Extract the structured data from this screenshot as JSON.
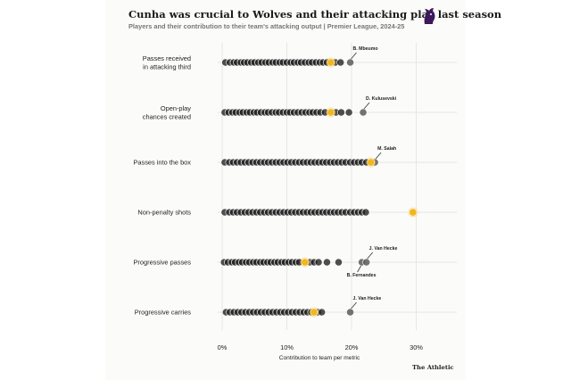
{
  "header": {
    "title": "Cunha was crucial to Wolves and their attacking play last season",
    "subtitle": "Players and their contribution to their team's attacking output | Premier League, 2024-25",
    "credit": "The Athletic",
    "logo_icon": "premier-league-lion-icon"
  },
  "colors": {
    "background": "#fbfbf9",
    "dot": "#1f1f1f",
    "highlight_dot": "#5a5a5a",
    "cunha": "#f2b61f"
  },
  "chart_data": {
    "type": "scatter",
    "orientation": "horizontal-strip",
    "xlabel": "Contribution to team per metric",
    "xlim": [
      0,
      32
    ],
    "xticks": [
      0,
      10,
      20,
      30
    ],
    "xtick_labels": [
      "0%",
      "10%",
      "20%",
      "30%"
    ],
    "grid": true,
    "series": [
      {
        "label_lines": [
          "Passes received",
          "in attacking third"
        ],
        "cunha": 16.8,
        "annotations": [
          {
            "name": "B. Mbeumo",
            "value": 19.8
          }
        ],
        "values": [
          0.5,
          1.2,
          1.8,
          2.3,
          2.9,
          3.4,
          3.9,
          4.5,
          5.0,
          5.6,
          6.1,
          6.7,
          7.2,
          7.8,
          8.3,
          8.9,
          9.4,
          10.0,
          10.6,
          11.1,
          11.7,
          12.2,
          12.8,
          13.4,
          13.9,
          14.5,
          15.1,
          15.6,
          16.2,
          17.5,
          18.3,
          19.8
        ]
      },
      {
        "label_lines": [
          "Open-play",
          "chances created"
        ],
        "cunha": 16.8,
        "annotations": [
          {
            "name": "D. Kulusevski",
            "value": 21.8
          }
        ],
        "values": [
          0.4,
          1.0,
          1.6,
          2.1,
          2.7,
          3.2,
          3.8,
          4.3,
          4.9,
          5.4,
          6.0,
          6.6,
          7.1,
          7.7,
          8.3,
          8.8,
          9.4,
          10.0,
          10.5,
          11.1,
          11.7,
          12.3,
          12.9,
          13.5,
          14.0,
          14.6,
          15.2,
          15.9,
          17.6,
          18.4,
          19.6,
          21.8
        ]
      },
      {
        "label_lines": [
          "Passes into the box"
        ],
        "cunha": 23.0,
        "annotations": [
          {
            "name": "M. Salah",
            "value": 23.6
          }
        ],
        "values": [
          0.4,
          1.1,
          1.7,
          2.3,
          2.9,
          3.5,
          4.1,
          4.7,
          5.3,
          5.9,
          6.5,
          7.1,
          7.7,
          8.3,
          8.9,
          9.5,
          10.1,
          10.7,
          11.3,
          11.9,
          12.5,
          13.1,
          13.7,
          14.3,
          14.9,
          15.5,
          16.1,
          16.7,
          17.3,
          17.9,
          18.5,
          19.1,
          19.8,
          20.4,
          21.0,
          21.6,
          22.3,
          23.6
        ]
      },
      {
        "label_lines": [
          "Non-penalty shots"
        ],
        "cunha": 29.5,
        "annotations": [],
        "values": [
          0.4,
          1.1,
          1.7,
          2.3,
          2.9,
          3.5,
          4.1,
          4.7,
          5.3,
          5.9,
          6.5,
          7.1,
          7.7,
          8.3,
          8.9,
          9.5,
          10.1,
          10.7,
          11.3,
          11.9,
          12.5,
          13.1,
          13.7,
          14.3,
          14.9,
          15.5,
          16.1,
          16.7,
          17.3,
          17.9,
          18.5,
          19.1,
          19.8,
          20.4,
          21.0,
          21.6,
          22.2
        ]
      },
      {
        "label_lines": [
          "Progressive passes"
        ],
        "cunha": 12.8,
        "annotations": [
          {
            "name": "J. Van Hecke",
            "value": 22.3,
            "side": "above"
          },
          {
            "name": "B. Fernandes",
            "value": 21.6,
            "side": "below"
          }
        ],
        "values": [
          0.3,
          0.9,
          1.5,
          2.0,
          2.6,
          3.1,
          3.7,
          4.2,
          4.8,
          5.3,
          5.9,
          6.4,
          7.0,
          7.5,
          8.1,
          8.6,
          9.2,
          9.7,
          10.3,
          10.8,
          11.4,
          11.9,
          13.6,
          14.2,
          14.9,
          16.2,
          18.0,
          21.6,
          22.3
        ]
      },
      {
        "label_lines": [
          "Progressive carries"
        ],
        "cunha": 14.2,
        "annotations": [
          {
            "name": "J. Van Hecke",
            "value": 19.8
          }
        ],
        "values": [
          0.6,
          1.2,
          1.8,
          2.4,
          3.0,
          3.6,
          4.2,
          4.8,
          5.4,
          6.0,
          6.6,
          7.2,
          7.8,
          8.4,
          9.0,
          9.6,
          10.2,
          10.8,
          11.4,
          12.0,
          12.6,
          13.2,
          13.8,
          14.8,
          15.4,
          19.8
        ]
      }
    ]
  }
}
